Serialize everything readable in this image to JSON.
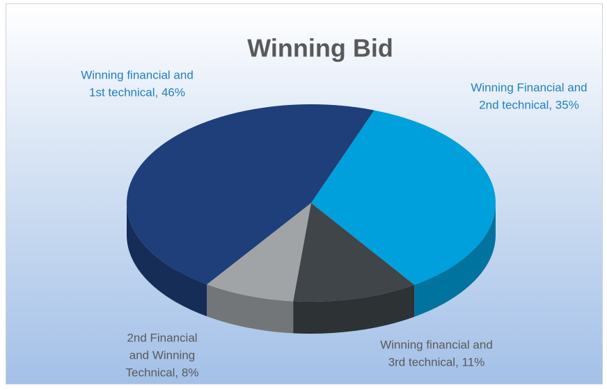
{
  "chart_data": {
    "type": "pie",
    "title": "Winning Bid",
    "categories": [
      "Winning financial and 1st technical",
      "Winning Financial and 2nd technical",
      "Winning financial and 3rd technical",
      "2nd Financial and Winning Technical"
    ],
    "values": [
      46,
      35,
      11,
      8
    ],
    "value_labels": [
      [
        "Winning financial and",
        "1st technical, 46%"
      ],
      [
        "Winning Financial and",
        "2nd technical, 35%"
      ],
      [
        "Winning financial and",
        "3rd technical, 11%"
      ],
      [
        "2nd Financial",
        "and Winning",
        "Technical, 8%"
      ]
    ],
    "colors": [
      "#1f3f7a",
      "#00a0dc",
      "#3f4549",
      "#a0a4a7"
    ],
    "legend": false
  }
}
